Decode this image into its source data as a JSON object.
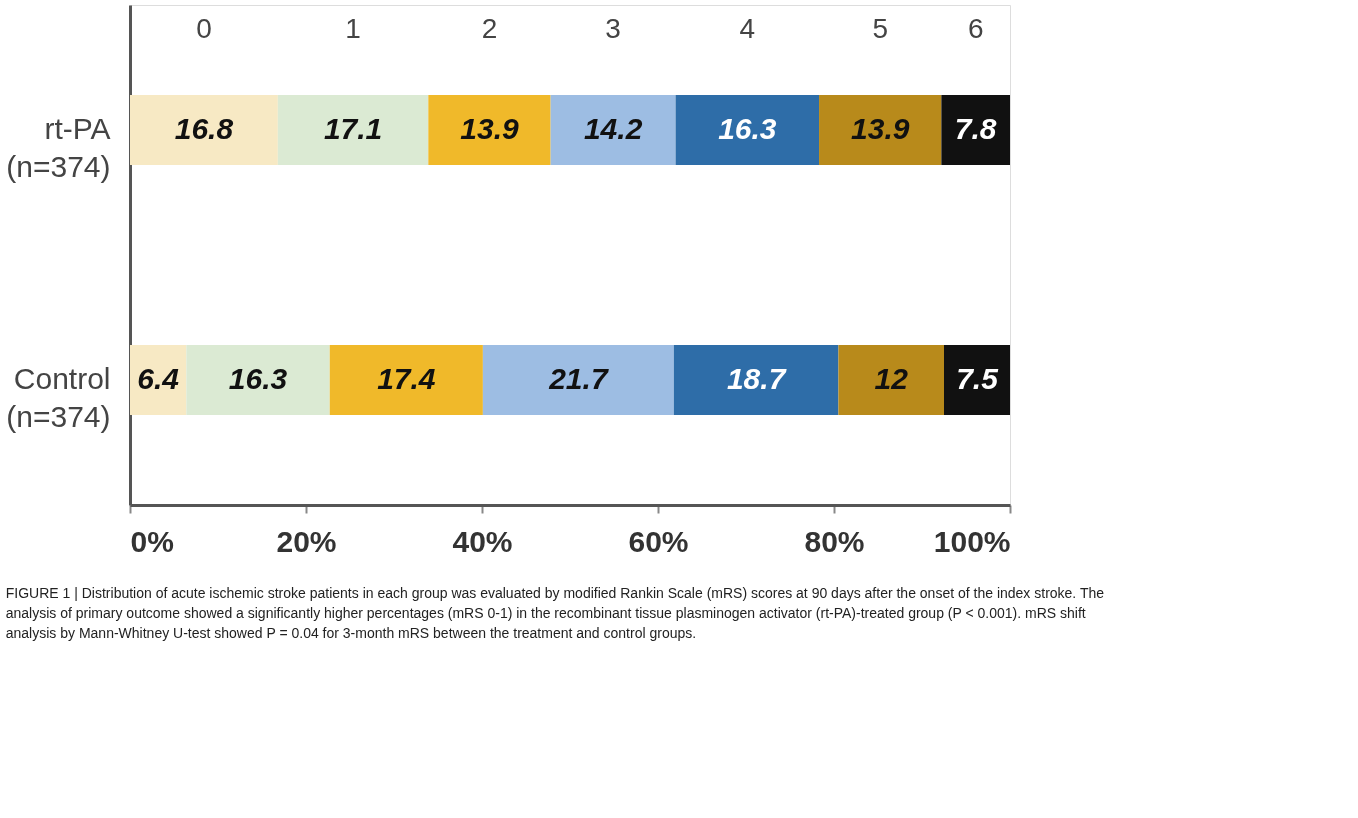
{
  "chart_data": {
    "type": "bar",
    "orientation": "horizontal",
    "stacked": true,
    "data_labels": true,
    "legend": "top",
    "grid": false,
    "categories": [
      "rt-PA\n(n=374)",
      "Control\n(n=374)"
    ],
    "series": [
      {
        "name": "0",
        "color": "#f7e9c4",
        "values": [
          16.8,
          6.4
        ]
      },
      {
        "name": "1",
        "color": "#dbead3",
        "values": [
          17.1,
          16.3
        ]
      },
      {
        "name": "2",
        "color": "#f0b92a",
        "values": [
          13.9,
          17.4
        ]
      },
      {
        "name": "3",
        "color": "#9dbde3",
        "values": [
          14.2,
          21.7
        ]
      },
      {
        "name": "4",
        "color": "#2e6da8",
        "values": [
          16.3,
          18.7
        ]
      },
      {
        "name": "5",
        "color": "#b88a1b",
        "values": [
          13.9,
          12
        ]
      },
      {
        "name": "6",
        "color": "#111111",
        "values": [
          7.8,
          7.5
        ]
      }
    ],
    "xlim": [
      0,
      100
    ],
    "xticks": [
      {
        "value": 0,
        "label": "0%"
      },
      {
        "value": 20,
        "label": "20%"
      },
      {
        "value": 40,
        "label": "40%"
      },
      {
        "value": 60,
        "label": "60%"
      },
      {
        "value": 80,
        "label": "80%"
      },
      {
        "value": 100,
        "label": "100%"
      }
    ],
    "annotations": [
      "FIGURE 1 | Distribution of acute ischemic stroke patients in each group was evaluated by modified Rankin Scale (mRS) scores at 90 days after the onset of the index stroke. The analysis of primary outcome showed a significantly higher percentages (mRS 0-1) in the recombinant tissue plasminogen activator (rt-PA)-treated group (P < 0.001). mRS shift analysis by Mann-Whitney U-test showed P = 0.04 for 3-month mRS between the treatment and control groups."
    ]
  }
}
